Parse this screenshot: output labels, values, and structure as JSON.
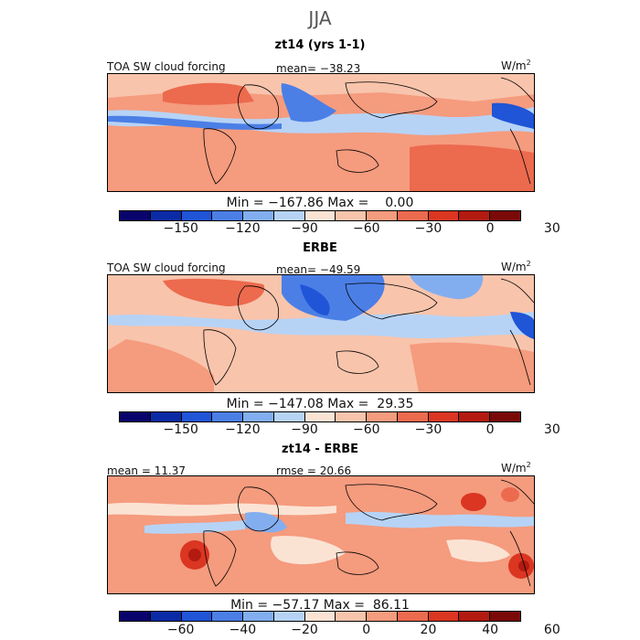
{
  "title": "JJA",
  "panels": [
    {
      "subtitle": "zt14 (yrs 1-1)",
      "left_label": "TOA SW cloud forcing",
      "mid_label": "mean= −38.23",
      "units": "W/m",
      "units_sup": "2",
      "minmax": "Min = −167.86 Max =    0.00",
      "colorbar": {
        "colors": [
          "#08046b",
          "#0b2aa5",
          "#1f55d6",
          "#4b7fe6",
          "#82aef0",
          "#b6d3f6",
          "#fbe3d4",
          "#f8c4ac",
          "#f59b7e",
          "#ec6a4e",
          "#da3622",
          "#b31a10",
          "#7a0a07"
        ],
        "tick_labels": [
          "−150",
          "−120",
          "−90",
          "−60",
          "−30",
          "0",
          "30"
        ]
      }
    },
    {
      "subtitle": "ERBE",
      "left_label": "TOA SW cloud forcing",
      "mid_label": "mean= −49.59",
      "units": "W/m",
      "units_sup": "2",
      "minmax": "Min = −147.08 Max =  29.35",
      "colorbar": {
        "colors": [
          "#08046b",
          "#0b2aa5",
          "#1f55d6",
          "#4b7fe6",
          "#82aef0",
          "#b6d3f6",
          "#fbe3d4",
          "#f8c4ac",
          "#f59b7e",
          "#ec6a4e",
          "#da3622",
          "#b31a10",
          "#7a0a07"
        ],
        "tick_labels": [
          "−150",
          "−120",
          "−90",
          "−60",
          "−30",
          "0",
          "30"
        ]
      }
    },
    {
      "subtitle": "zt14 - ERBE",
      "left_label": "mean =  11.37",
      "mid_label": "rmse =  20.66",
      "units": "W/m",
      "units_sup": "2",
      "minmax": "Min = −57.17 Max =  86.11",
      "colorbar": {
        "colors": [
          "#08046b",
          "#0b2aa5",
          "#1f55d6",
          "#4b7fe6",
          "#82aef0",
          "#b6d3f6",
          "#fbe3d4",
          "#f8c4ac",
          "#f59b7e",
          "#ec6a4e",
          "#da3622",
          "#b31a10",
          "#7a0a07"
        ],
        "tick_labels": [
          "−60",
          "−40",
          "−20",
          "0",
          "20",
          "40",
          "60"
        ]
      }
    }
  ]
}
